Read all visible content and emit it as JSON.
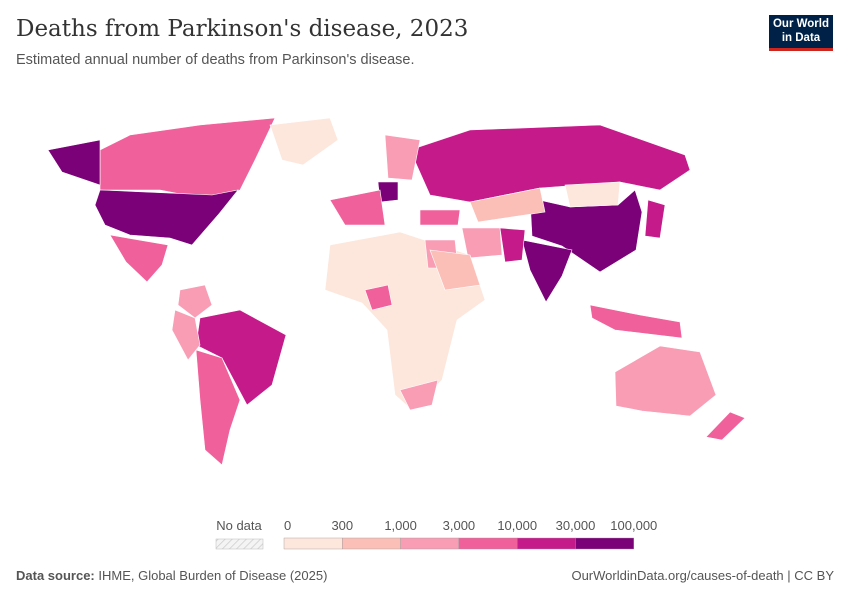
{
  "header": {
    "title": "Deaths from Parkinson's disease, 2023",
    "subtitle": "Estimated annual number of deaths from Parkinson's disease.",
    "logo": "Our World in Data"
  },
  "legend": {
    "no_data_label": "No data",
    "ticks": [
      "0",
      "300",
      "1,000",
      "3,000",
      "10,000",
      "30,000",
      "100,000"
    ],
    "colors": [
      "#fde6dc",
      "#fbbfb8",
      "#f99db5",
      "#f0619b",
      "#c51b8a",
      "#7a0177"
    ],
    "no_data_color": "#eeeeee"
  },
  "map": {
    "countries": [
      {
        "name": "Canada",
        "bin": 3
      },
      {
        "name": "Alaska (United States)",
        "bin": 5
      },
      {
        "name": "United States",
        "bin": 5
      },
      {
        "name": "Greenland",
        "bin": 0
      },
      {
        "name": "Mexico",
        "bin": 3
      },
      {
        "name": "Brazil",
        "bin": 4
      },
      {
        "name": "Argentina",
        "bin": 3
      },
      {
        "name": "Peru",
        "bin": 2
      },
      {
        "name": "Colombia",
        "bin": 2
      },
      {
        "name": "Russia",
        "bin": 4
      },
      {
        "name": "China",
        "bin": 5
      },
      {
        "name": "India",
        "bin": 5
      },
      {
        "name": "Kazakhstan",
        "bin": 1
      },
      {
        "name": "Mongolia",
        "bin": 0
      },
      {
        "name": "Africa (other)",
        "bin": 0
      },
      {
        "name": "Nigeria",
        "bin": 3
      },
      {
        "name": "South Africa",
        "bin": 2
      },
      {
        "name": "Egypt",
        "bin": 2
      },
      {
        "name": "Australia",
        "bin": 2
      },
      {
        "name": "New Zealand",
        "bin": 3
      },
      {
        "name": "Japan",
        "bin": 4
      },
      {
        "name": "Germany",
        "bin": 5
      },
      {
        "name": "Western Europe",
        "bin": 3
      },
      {
        "name": "Turkey",
        "bin": 3
      },
      {
        "name": "Iran",
        "bin": 2
      },
      {
        "name": "Pakistan",
        "bin": 4
      },
      {
        "name": "Indonesia",
        "bin": 3
      },
      {
        "name": "Scandinavia",
        "bin": 2
      },
      {
        "name": "Saudi Arabia",
        "bin": 1
      }
    ]
  },
  "footer": {
    "source_label": "Data source:",
    "source": "IHME, Global Burden of Disease (2025)",
    "url": "OurWorldinData.org/causes-of-death | CC BY"
  }
}
